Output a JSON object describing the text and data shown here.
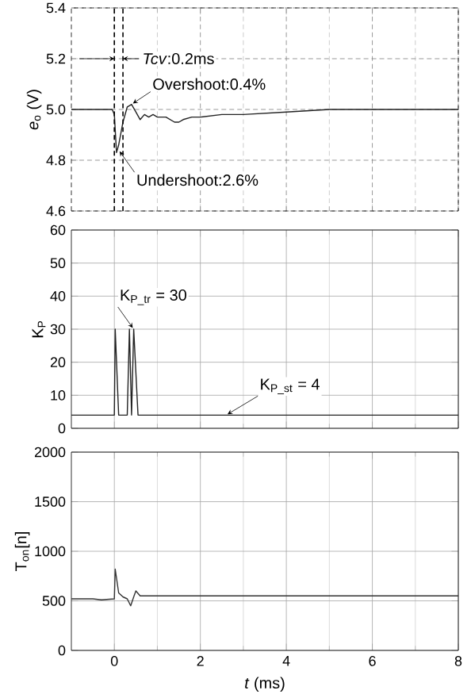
{
  "chart_data": [
    {
      "type": "line",
      "ylabel": "*e*$_{o}$ (V)",
      "xlim": [
        -1,
        8
      ],
      "ylim": [
        4.6,
        5.4
      ],
      "xticks": [
        0,
        2,
        4,
        6,
        8
      ],
      "yticks": [
        4.6,
        4.8,
        {
          "value": 5.0,
          "label": "5.0"
        },
        5.2,
        5.4
      ],
      "tick_labels": "y",
      "grid": true,
      "series": [
        {
          "color": "#222222",
          "x": [
            -1,
            -0.8,
            -0.6,
            -0.4,
            -0.2,
            -0.05,
            0,
            0.05,
            0.1,
            0.2,
            0.3,
            0.4,
            0.5,
            0.6,
            0.7,
            0.8,
            0.9,
            1.0,
            1.2,
            1.4,
            1.5,
            1.6,
            1.8,
            2,
            2.5,
            3,
            4,
            5,
            6,
            7,
            8
          ],
          "values": [
            5.0,
            5.0,
            5.0,
            5.0,
            5.0,
            5.0,
            4.98,
            4.83,
            4.86,
            4.95,
            5.01,
            5.02,
            4.99,
            4.96,
            4.98,
            4.97,
            4.98,
            4.97,
            4.97,
            4.95,
            4.95,
            4.96,
            4.97,
            4.97,
            4.98,
            4.98,
            4.99,
            5.0,
            5.0,
            5.0,
            5.0
          ]
        }
      ],
      "ref_lines": [
        {
          "axis": "x",
          "value": 0,
          "line_style": "dashed"
        },
        {
          "axis": "x",
          "value": 0.2,
          "line_style": "dashed"
        }
      ],
      "annotations": [
        {
          "text": "Overshoot:0.4%",
          "x": 0.4,
          "y": 5.02
        },
        {
          "text": "Undershoot:2.6%",
          "x": 0.1,
          "y": 4.84
        },
        "*Tcv*:0.2ms"
      ]
    },
    {
      "type": "line",
      "ylabel": "K$_{P}$",
      "xlim": [
        -1,
        8
      ],
      "ylim": [
        0,
        60
      ],
      "xticks": [
        0,
        2,
        4,
        6,
        8
      ],
      "yticks": [
        0,
        10,
        20,
        30,
        40,
        50,
        60
      ],
      "tick_labels": "y",
      "grid": true,
      "series": [
        {
          "color": "#222222",
          "x": [
            -1,
            0,
            0.02,
            0.1,
            0.3,
            0.35,
            0.4,
            0.45,
            0.55,
            8
          ],
          "values": [
            4,
            4,
            30,
            4,
            4,
            30,
            4,
            30,
            4,
            4
          ]
        }
      ],
      "annotations": [
        {
          "text": "K$_{P_tr}$ = 30",
          "x": 0.45,
          "y": 30
        },
        {
          "text": "K$_{P_st}$ = 4",
          "x": 2.6,
          "y": 4
        }
      ]
    },
    {
      "type": "line",
      "ylabel": "T$_{on}$[n]",
      "xlabel": "*t* (ms)",
      "xlim": [
        -1,
        8
      ],
      "ylim": [
        0,
        2000
      ],
      "xticks": [
        0,
        2,
        4,
        6,
        8
      ],
      "yticks": [
        0,
        500,
        1000,
        1500,
        2000
      ],
      "grid": true,
      "series": [
        {
          "color": "#333333",
          "x": [
            -1,
            -0.5,
            -0.3,
            0,
            0.02,
            0.1,
            0.2,
            0.3,
            0.38,
            0.45,
            0.5,
            0.6,
            1,
            2,
            4,
            6,
            8
          ],
          "values": [
            520,
            520,
            510,
            520,
            820,
            580,
            540,
            520,
            450,
            540,
            600,
            550,
            550,
            550,
            550,
            550,
            550
          ]
        }
      ]
    }
  ]
}
